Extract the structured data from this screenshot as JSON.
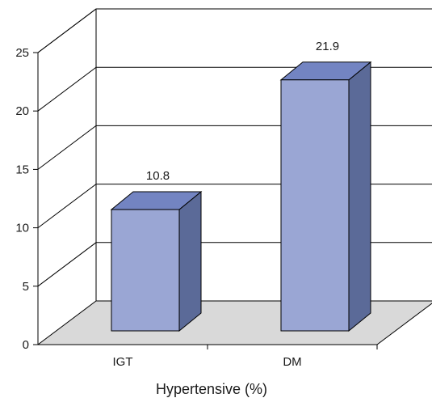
{
  "chart_data": {
    "type": "bar",
    "style": "3d-column",
    "categories": [
      "IGT",
      "DM"
    ],
    "values": [
      10.8,
      21.9
    ],
    "data_labels": [
      "10.8",
      "21.9"
    ],
    "xlabel": "Hypertensive (%)",
    "ylabel": "",
    "ylim": [
      0,
      25
    ],
    "yticks": [
      "0",
      "5",
      "10",
      "15",
      "20",
      "25"
    ],
    "grid": true,
    "legend": "none",
    "colors": {
      "bar_front": "#9aa6d4",
      "bar_side": "#5b6a98",
      "bar_top": "#7384c2",
      "floor": "#d9d9d9",
      "line": "#000000"
    }
  }
}
